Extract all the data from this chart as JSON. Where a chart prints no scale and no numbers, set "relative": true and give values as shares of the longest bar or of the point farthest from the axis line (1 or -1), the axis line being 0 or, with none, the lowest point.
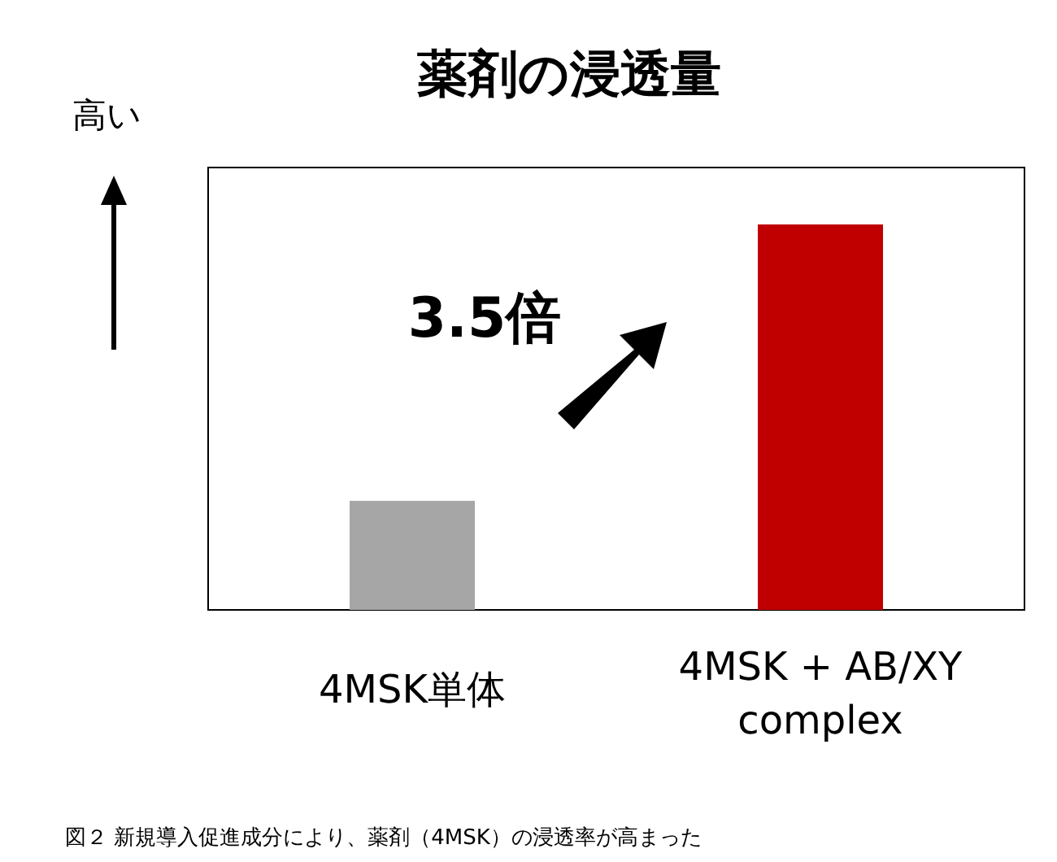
{
  "chart_data": {
    "type": "bar",
    "title": "薬剤の浸透量",
    "ylabel": "高い",
    "relative": true,
    "categories": [
      "4MSK単体",
      "4MSK + AB/XY complex"
    ],
    "values": [
      0.283,
      1
    ],
    "colors": [
      "#a6a6a6",
      "#c00000"
    ],
    "annotations": [
      "3.5倍",
      "図２ 新規導入促進成分により、薬剤（4MSK）の浸透率が高まった"
    ]
  }
}
